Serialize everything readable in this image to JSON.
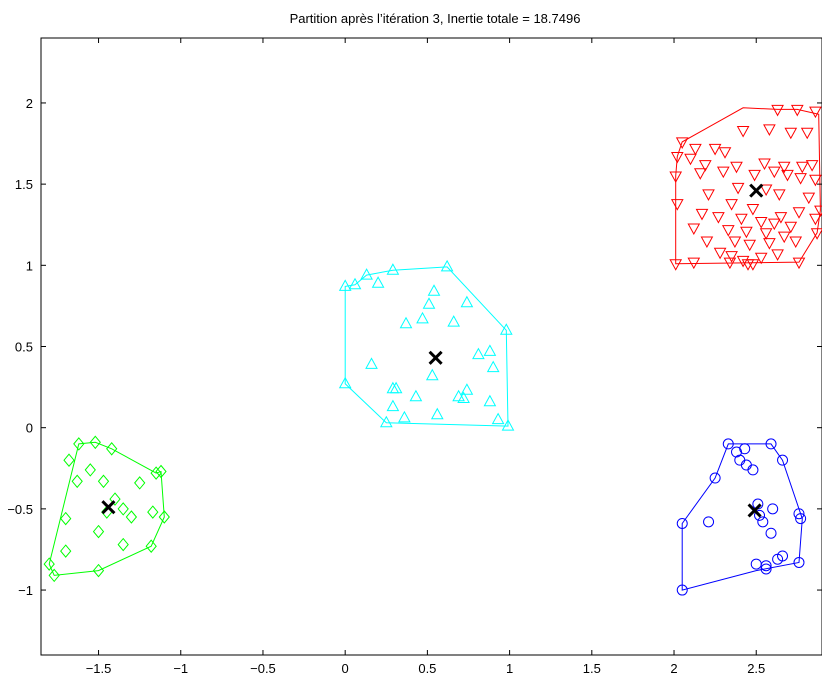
{
  "chart_data": {
    "type": "scatter",
    "title": "Partition après l’itération 3,  Inertie totale = 18.7496",
    "xlabel": "",
    "ylabel": "",
    "xlim": [
      -1.85,
      2.9
    ],
    "ylim": [
      -1.4,
      2.4
    ],
    "xticks": [
      -1.5,
      -1,
      -0.5,
      0,
      0.5,
      1,
      1.5,
      2,
      2.5
    ],
    "xtick_labels": [
      "−1.5",
      "−1",
      "−0.5",
      "0",
      "0.5",
      "1",
      "1.5",
      "2",
      "2.5"
    ],
    "yticks": [
      -1,
      -0.5,
      0,
      0.5,
      1,
      1.5,
      2
    ],
    "ytick_labels": [
      "−1",
      "−0.5",
      "0",
      "0.5",
      "1",
      "1.5",
      "2"
    ],
    "grid": false,
    "series": [
      {
        "marker": "diamond",
        "color": "#00ff00",
        "points": [
          [
            -1.62,
            -0.1
          ],
          [
            -1.52,
            -0.09
          ],
          [
            -1.42,
            -0.13
          ],
          [
            -1.68,
            -0.2
          ],
          [
            -1.55,
            -0.26
          ],
          [
            -1.63,
            -0.33
          ],
          [
            -1.47,
            -0.33
          ],
          [
            -1.15,
            -0.28
          ],
          [
            -1.12,
            -0.27
          ],
          [
            -1.25,
            -0.34
          ],
          [
            -1.4,
            -0.44
          ],
          [
            -1.35,
            -0.5
          ],
          [
            -1.7,
            -0.56
          ],
          [
            -1.3,
            -0.55
          ],
          [
            -1.17,
            -0.52
          ],
          [
            -1.1,
            -0.55
          ],
          [
            -1.5,
            -0.64
          ],
          [
            -1.35,
            -0.72
          ],
          [
            -1.18,
            -0.73
          ],
          [
            -1.7,
            -0.76
          ],
          [
            -1.8,
            -0.84
          ],
          [
            -1.77,
            -0.91
          ],
          [
            -1.5,
            -0.88
          ],
          [
            -1.45,
            -0.52
          ]
        ],
        "hull": [
          [
            -1.8,
            -0.84
          ],
          [
            -1.62,
            -0.1
          ],
          [
            -1.52,
            -0.09
          ],
          [
            -1.42,
            -0.13
          ],
          [
            -1.15,
            -0.28
          ],
          [
            -1.12,
            -0.27
          ],
          [
            -1.1,
            -0.55
          ],
          [
            -1.18,
            -0.73
          ],
          [
            -1.5,
            -0.88
          ],
          [
            -1.77,
            -0.91
          ]
        ],
        "centroid": [
          -1.44,
          -0.49
        ]
      },
      {
        "marker": "triangle-up",
        "color": "#00ffff",
        "points": [
          [
            0.13,
            0.94
          ],
          [
            0.2,
            0.89
          ],
          [
            0.29,
            0.97
          ],
          [
            0.62,
            0.99
          ],
          [
            0.0,
            0.87
          ],
          [
            0.06,
            0.88
          ],
          [
            0.54,
            0.84
          ],
          [
            0.74,
            0.77
          ],
          [
            0.51,
            0.76
          ],
          [
            0.66,
            0.65
          ],
          [
            0.37,
            0.64
          ],
          [
            0.47,
            0.67
          ],
          [
            0.98,
            0.6
          ],
          [
            0.81,
            0.45
          ],
          [
            0.88,
            0.47
          ],
          [
            0.16,
            0.39
          ],
          [
            0.9,
            0.37
          ],
          [
            0.53,
            0.32
          ],
          [
            0.29,
            0.24
          ],
          [
            0.31,
            0.24
          ],
          [
            0.0,
            0.27
          ],
          [
            0.74,
            0.23
          ],
          [
            0.72,
            0.18
          ],
          [
            0.69,
            0.19
          ],
          [
            0.43,
            0.19
          ],
          [
            0.88,
            0.16
          ],
          [
            0.29,
            0.13
          ],
          [
            0.56,
            0.08
          ],
          [
            0.36,
            0.06
          ],
          [
            0.93,
            0.05
          ],
          [
            0.25,
            0.03
          ],
          [
            0.99,
            0.01
          ]
        ],
        "hull": [
          [
            0.0,
            0.27
          ],
          [
            0.0,
            0.87
          ],
          [
            0.06,
            0.88
          ],
          [
            0.13,
            0.94
          ],
          [
            0.29,
            0.97
          ],
          [
            0.62,
            0.99
          ],
          [
            0.98,
            0.6
          ],
          [
            0.99,
            0.01
          ],
          [
            0.25,
            0.03
          ]
        ],
        "centroid": [
          0.55,
          0.43
        ]
      },
      {
        "marker": "triangle-down",
        "color": "#ff0000",
        "points": [
          [
            2.63,
            1.96
          ],
          [
            2.75,
            1.96
          ],
          [
            2.86,
            1.95
          ],
          [
            2.42,
            1.83
          ],
          [
            2.58,
            1.84
          ],
          [
            2.71,
            1.82
          ],
          [
            2.81,
            1.82
          ],
          [
            2.05,
            1.76
          ],
          [
            2.13,
            1.72
          ],
          [
            2.25,
            1.72
          ],
          [
            2.31,
            1.7
          ],
          [
            2.02,
            1.67
          ],
          [
            2.1,
            1.66
          ],
          [
            2.19,
            1.62
          ],
          [
            2.38,
            1.61
          ],
          [
            2.55,
            1.63
          ],
          [
            2.67,
            1.61
          ],
          [
            2.78,
            1.61
          ],
          [
            2.84,
            1.62
          ],
          [
            2.01,
            1.55
          ],
          [
            2.16,
            1.57
          ],
          [
            2.3,
            1.58
          ],
          [
            2.49,
            1.56
          ],
          [
            2.61,
            1.58
          ],
          [
            2.69,
            1.56
          ],
          [
            2.77,
            1.54
          ],
          [
            2.86,
            1.53
          ],
          [
            2.39,
            1.48
          ],
          [
            2.56,
            1.47
          ],
          [
            2.21,
            1.44
          ],
          [
            2.64,
            1.44
          ],
          [
            2.82,
            1.42
          ],
          [
            2.02,
            1.38
          ],
          [
            2.35,
            1.38
          ],
          [
            2.48,
            1.35
          ],
          [
            2.65,
            1.3
          ],
          [
            2.76,
            1.33
          ],
          [
            2.86,
            1.29
          ],
          [
            2.17,
            1.32
          ],
          [
            2.27,
            1.3
          ],
          [
            2.41,
            1.29
          ],
          [
            2.53,
            1.27
          ],
          [
            2.61,
            1.26
          ],
          [
            2.71,
            1.24
          ],
          [
            2.12,
            1.23
          ],
          [
            2.33,
            1.22
          ],
          [
            2.44,
            1.21
          ],
          [
            2.56,
            1.2
          ],
          [
            2.67,
            1.18
          ],
          [
            2.2,
            1.15
          ],
          [
            2.37,
            1.15
          ],
          [
            2.46,
            1.13
          ],
          [
            2.58,
            1.14
          ],
          [
            2.74,
            1.15
          ],
          [
            2.28,
            1.08
          ],
          [
            2.35,
            1.06
          ],
          [
            2.53,
            1.05
          ],
          [
            2.63,
            1.07
          ],
          [
            2.48,
            1.01
          ],
          [
            2.01,
            1.01
          ],
          [
            2.12,
            1.02
          ],
          [
            2.34,
            1.02
          ],
          [
            2.42,
            1.03
          ],
          [
            2.45,
            1.01
          ],
          [
            2.76,
            1.02
          ],
          [
            2.87,
            1.2
          ],
          [
            2.89,
            1.34
          ]
        ],
        "hull": [
          [
            2.01,
            1.01
          ],
          [
            2.01,
            1.55
          ],
          [
            2.02,
            1.67
          ],
          [
            2.05,
            1.76
          ],
          [
            2.42,
            1.97
          ],
          [
            2.63,
            1.96
          ],
          [
            2.75,
            1.96
          ],
          [
            2.88,
            1.93
          ],
          [
            2.89,
            1.34
          ],
          [
            2.87,
            1.2
          ],
          [
            2.76,
            1.02
          ]
        ],
        "centroid": [
          2.5,
          1.46
        ]
      },
      {
        "marker": "circle",
        "color": "#0000ff",
        "points": [
          [
            2.33,
            -0.1
          ],
          [
            2.43,
            -0.13
          ],
          [
            2.59,
            -0.1
          ],
          [
            2.38,
            -0.15
          ],
          [
            2.4,
            -0.2
          ],
          [
            2.44,
            -0.23
          ],
          [
            2.48,
            -0.26
          ],
          [
            2.66,
            -0.2
          ],
          [
            2.25,
            -0.31
          ],
          [
            2.51,
            -0.47
          ],
          [
            2.6,
            -0.5
          ],
          [
            2.21,
            -0.58
          ],
          [
            2.05,
            -0.59
          ],
          [
            2.54,
            -0.58
          ],
          [
            2.59,
            -0.65
          ],
          [
            2.76,
            -0.53
          ],
          [
            2.77,
            -0.56
          ],
          [
            2.63,
            -0.81
          ],
          [
            2.66,
            -0.79
          ],
          [
            2.5,
            -0.84
          ],
          [
            2.56,
            -0.85
          ],
          [
            2.56,
            -0.87
          ],
          [
            2.76,
            -0.83
          ],
          [
            2.05,
            -1.0
          ],
          [
            2.52,
            -0.54
          ]
        ],
        "hull": [
          [
            2.05,
            -1.0
          ],
          [
            2.05,
            -0.59
          ],
          [
            2.25,
            -0.31
          ],
          [
            2.33,
            -0.1
          ],
          [
            2.59,
            -0.1
          ],
          [
            2.66,
            -0.2
          ],
          [
            2.77,
            -0.53
          ],
          [
            2.78,
            -0.56
          ],
          [
            2.76,
            -0.83
          ],
          [
            2.5,
            -0.88
          ]
        ],
        "centroid": [
          2.49,
          -0.51
        ]
      }
    ]
  }
}
